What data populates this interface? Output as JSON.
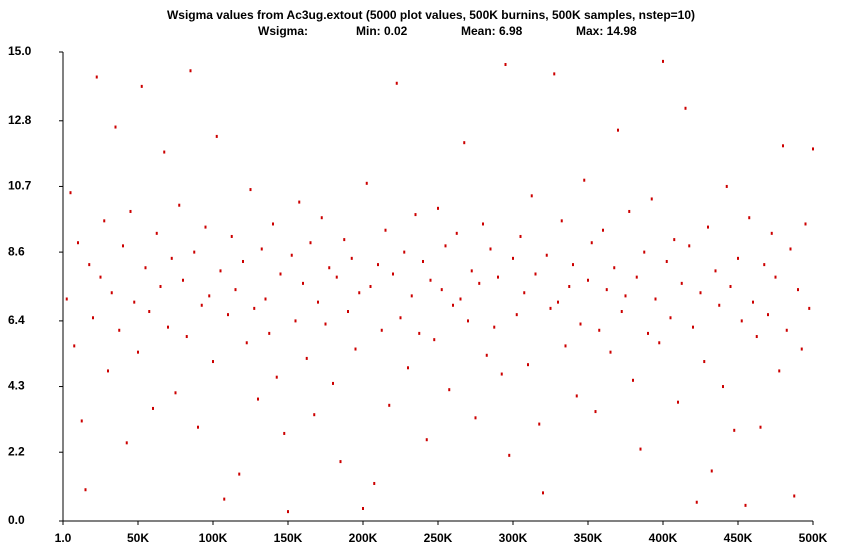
{
  "chart_data": {
    "type": "scatter",
    "title": "Wsigma values from Ac3ug.extout  (5000 plot values, 500K burnins, 500K samples, nstep=10)",
    "stats": [
      "Wsigma:",
      "Min: 0.02",
      "Mean: 6.98",
      "Max: 14.98"
    ],
    "xlim": [
      1,
      500000
    ],
    "ylim": [
      0,
      15
    ],
    "xticks": [
      {
        "value": 1,
        "label": "1.0"
      },
      {
        "value": 50000,
        "label": "50K"
      },
      {
        "value": 100000,
        "label": "100K"
      },
      {
        "value": 150000,
        "label": "150K"
      },
      {
        "value": 200000,
        "label": "200K"
      },
      {
        "value": 250000,
        "label": "250K"
      },
      {
        "value": 300000,
        "label": "300K"
      },
      {
        "value": 350000,
        "label": "350K"
      },
      {
        "value": 400000,
        "label": "400K"
      },
      {
        "value": 450000,
        "label": "450K"
      },
      {
        "value": 500000,
        "label": "500K"
      }
    ],
    "yticks": [
      {
        "value": 0,
        "label": "0.0"
      },
      2.2,
      4.3,
      6.4,
      8.6,
      10.7,
      12.8,
      {
        "value": 15,
        "label": "15.0"
      }
    ],
    "color": "#cc0000",
    "x": [
      2500,
      5000,
      7500,
      10000,
      12500,
      15000,
      17500,
      20000,
      22500,
      25000,
      27500,
      30000,
      32500,
      35000,
      37500,
      40000,
      42500,
      45000,
      47500,
      50000,
      52500,
      55000,
      57500,
      60000,
      62500,
      65000,
      67500,
      70000,
      72500,
      75000,
      77500,
      80000,
      82500,
      85000,
      87500,
      90000,
      92500,
      95000,
      97500,
      100000,
      102500,
      105000,
      107500,
      110000,
      112500,
      115000,
      117500,
      120000,
      122500,
      125000,
      127500,
      130000,
      132500,
      135000,
      137500,
      140000,
      142500,
      145000,
      147500,
      150000,
      152500,
      155000,
      157500,
      160000,
      162500,
      165000,
      167500,
      170000,
      172500,
      175000,
      177500,
      180000,
      182500,
      185000,
      187500,
      190000,
      192500,
      195000,
      197500,
      200000,
      202500,
      205000,
      207500,
      210000,
      212500,
      215000,
      217500,
      220000,
      222500,
      225000,
      227500,
      230000,
      232500,
      235000,
      237500,
      240000,
      242500,
      245000,
      247500,
      250000,
      252500,
      255000,
      257500,
      260000,
      262500,
      265000,
      267500,
      270000,
      272500,
      275000,
      277500,
      280000,
      282500,
      285000,
      287500,
      290000,
      292500,
      295000,
      297500,
      300000,
      302500,
      305000,
      307500,
      310000,
      312500,
      315000,
      317500,
      320000,
      322500,
      325000,
      327500,
      330000,
      332500,
      335000,
      337500,
      340000,
      342500,
      345000,
      347500,
      350000,
      352500,
      355000,
      357500,
      360000,
      362500,
      365000,
      367500,
      370000,
      372500,
      375000,
      377500,
      380000,
      382500,
      385000,
      387500,
      390000,
      392500,
      395000,
      397500,
      400000,
      402500,
      405000,
      407500,
      410000,
      412500,
      415000,
      417500,
      420000,
      422500,
      425000,
      427500,
      430000,
      432500,
      435000,
      437500,
      440000,
      442500,
      445000,
      447500,
      450000,
      452500,
      455000,
      457500,
      460000,
      462500,
      465000,
      467500,
      470000,
      472500,
      475000,
      477500,
      480000,
      482500,
      485000,
      487500,
      490000,
      492500,
      495000,
      497500,
      500000
    ],
    "values": [
      7.1,
      10.5,
      5.6,
      8.9,
      3.2,
      1.0,
      8.2,
      6.5,
      14.2,
      7.8,
      9.6,
      4.8,
      7.3,
      12.6,
      6.1,
      8.8,
      2.5,
      9.9,
      7.0,
      5.4,
      13.9,
      8.1,
      6.7,
      3.6,
      9.2,
      7.5,
      11.8,
      6.2,
      8.4,
      4.1,
      10.1,
      7.7,
      5.9,
      14.4,
      8.6,
      3.0,
      6.9,
      9.4,
      7.2,
      5.1,
      12.3,
      8.0,
      0.7,
      6.6,
      9.1,
      7.4,
      1.5,
      8.3,
      5.7,
      10.6,
      6.8,
      3.9,
      8.7,
      7.1,
      6.0,
      9.5,
      4.6,
      7.9,
      2.8,
      0.3,
      8.5,
      6.4,
      10.2,
      7.6,
      5.2,
      8.9,
      3.4,
      7.0,
      9.7,
      6.3,
      8.1,
      4.4,
      7.8,
      1.9,
      9.0,
      6.7,
      8.4,
      5.5,
      7.3,
      0.4,
      10.8,
      7.5,
      1.2,
      8.2,
      6.1,
      9.3,
      3.7,
      7.9,
      14.0,
      6.5,
      8.6,
      4.9,
      7.2,
      9.8,
      6.0,
      8.3,
      2.6,
      7.7,
      5.8,
      10.0,
      7.4,
      8.8,
      4.2,
      6.9,
      9.2,
      7.1,
      12.1,
      6.4,
      8.0,
      3.3,
      7.6,
      9.5,
      5.3,
      8.7,
      6.2,
      7.8,
      4.7,
      14.6,
      2.1,
      8.4,
      6.6,
      9.1,
      7.3,
      5.0,
      10.4,
      7.9,
      3.1,
      0.9,
      8.5,
      6.8,
      14.3,
      7.0,
      9.6,
      5.6,
      7.5,
      8.2,
      4.0,
      6.3,
      10.9,
      7.7,
      8.9,
      3.5,
      6.1,
      9.3,
      7.4,
      5.4,
      8.1,
      12.5,
      6.7,
      7.2,
      9.9,
      4.5,
      7.8,
      2.3,
      8.6,
      6.0,
      10.3,
      7.1,
      5.7,
      14.7,
      8.3,
      6.5,
      9.0,
      3.8,
      7.6,
      13.2,
      8.8,
      6.2,
      0.6,
      7.3,
      5.1,
      9.4,
      1.6,
      8.0,
      6.9,
      4.3,
      10.7,
      7.5,
      2.9,
      8.4,
      6.4,
      0.5,
      9.7,
      7.0,
      5.9,
      3.0,
      8.2,
      6.6,
      9.2,
      7.8,
      4.8,
      12.0,
      6.1,
      8.7,
      0.8,
      7.4,
      5.5,
      9.5,
      6.8,
      11.9
    ]
  }
}
